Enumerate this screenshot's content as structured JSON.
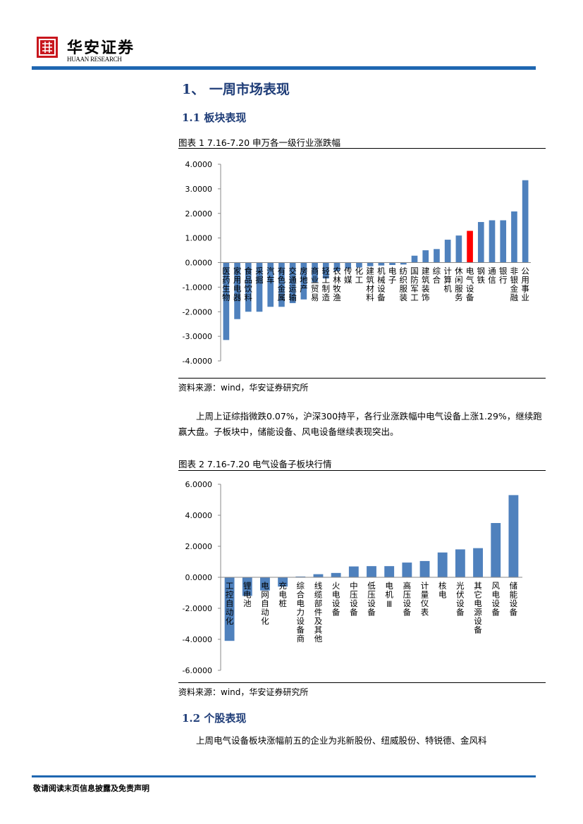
{
  "header": {
    "brand_cn": "华安证券",
    "brand_en": "HUAAN RESEARCH"
  },
  "section1": {
    "title": "1、 一周市场表现"
  },
  "section1_1": {
    "title": "1.1  板块表现"
  },
  "figure1": {
    "caption": "图表  1 7.16-7.20 申万各一级行业涨跌幅",
    "source": "资料来源：wind，华安证券研究所"
  },
  "paragraph1": "上周上证综指微跌0.07%，沪深300持平，各行业涨跌幅中电气设备上涨1.29%，继续跑赢大盘。子板块中，储能设备、风电设备继续表现突出。",
  "figure2": {
    "caption": "图表  2 7.16-7.20 电气设备子板块行情",
    "source": "资料来源：wind，华安证券研究所"
  },
  "section1_2": {
    "title": "1.2  个股表现"
  },
  "paragraph2": "上周电气设备板块涨幅前五的企业为兆新股份、纽威股份、特锐德、金风科",
  "footer": {
    "disclaimer": "敬请阅读末页信息披露及免责声明"
  },
  "colors": {
    "bar": "#4f81bd",
    "highlight": "#ff0000",
    "brand": "#1f67b1",
    "logo": "#c8161d"
  },
  "chart_data": [
    {
      "type": "bar",
      "title": "7.16-7.20 申万各一级行业涨跌幅",
      "ylim": [
        -4,
        4
      ],
      "yticks": [
        "4.0000",
        "3.0000",
        "2.0000",
        "1.0000",
        "0.0000",
        "-1.0000",
        "-2.0000",
        "-3.0000",
        "-4.0000"
      ],
      "highlight": "电气设备",
      "categories": [
        "医药生物",
        "家用电器",
        "食品饮料",
        "采掘",
        "汽车",
        "有色金属",
        "交通运输",
        "房地产",
        "商业贸易",
        "轻工制造",
        "农林牧渔",
        "传媒",
        "化工",
        "建筑材料",
        "机械设备",
        "电子",
        "纺织服装",
        "国防军工",
        "建筑装饰",
        "综合",
        "计算机",
        "休闲服务",
        "电气设备",
        "钢铁",
        "通信",
        "银行",
        "非银金融",
        "公用事业"
      ],
      "values": [
        -3.15,
        -2.3,
        -2.0,
        -2.0,
        -1.8,
        -1.8,
        -1.65,
        -1.5,
        -0.8,
        -0.65,
        -0.35,
        -0.25,
        -0.2,
        -0.15,
        -0.12,
        -0.1,
        -0.08,
        0.28,
        0.5,
        0.55,
        0.93,
        1.1,
        1.29,
        1.65,
        1.72,
        1.72,
        2.08,
        3.35
      ]
    },
    {
      "type": "bar",
      "title": "7.16-7.20 电气设备子板块行情",
      "ylim": [
        -6,
        6
      ],
      "yticks": [
        "6.0000",
        "4.0000",
        "2.0000",
        "0.0000",
        "-2.0000",
        "-4.0000",
        "-6.0000"
      ],
      "categories": [
        "工控自动化",
        "锂电池",
        "电网自动化",
        "充电桩",
        "综合电力设备商",
        "线缆部件及其他",
        "火电设备",
        "中压设备",
        "低压设备",
        "电机Ⅲ",
        "高压设备",
        "计量仪表",
        "核电",
        "光伏设备",
        "其它电源设备",
        "风电设备",
        "储能设备"
      ],
      "values": [
        -4.1,
        -1.2,
        -0.85,
        -0.6,
        0.05,
        0.2,
        0.28,
        0.7,
        0.72,
        0.72,
        0.95,
        1.05,
        1.6,
        1.8,
        1.88,
        3.5,
        5.3
      ]
    }
  ]
}
